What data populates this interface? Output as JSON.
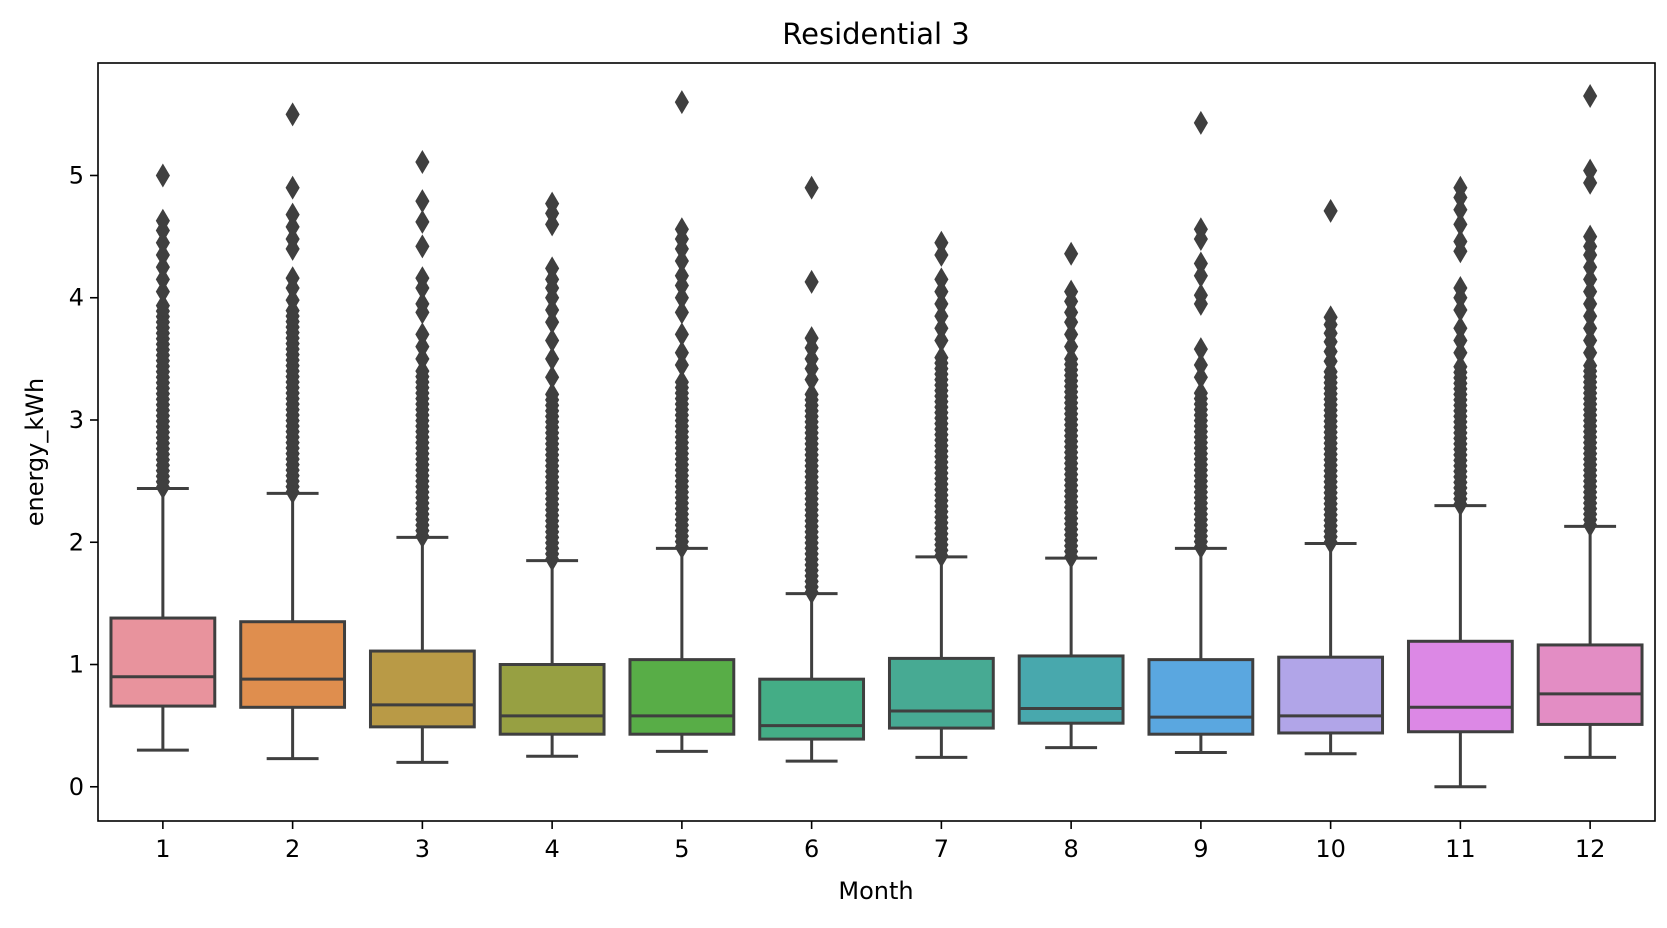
{
  "chart_data": {
    "type": "box",
    "title": "Residential 3",
    "xlabel": "Month",
    "ylabel": "energy_kWh",
    "categories": [
      "1",
      "2",
      "3",
      "4",
      "5",
      "6",
      "7",
      "8",
      "9",
      "10",
      "11",
      "12"
    ],
    "ylim": [
      -0.28,
      5.92
    ],
    "yticks": [
      0,
      1,
      2,
      3,
      4,
      5
    ],
    "ytick_labels": [
      "0",
      "1",
      "2",
      "3",
      "4",
      "5"
    ],
    "grid": false,
    "legend": "none",
    "box_edge_color": "#3f3f3f",
    "colors": [
      "#e8939d",
      "#df8e4e",
      "#b99a46",
      "#97a042",
      "#58ad47",
      "#44ad86",
      "#47aa93",
      "#48a8ad",
      "#5aa7e0",
      "#b1a5e8",
      "#dc88e5",
      "#e38dc4"
    ],
    "boxes": [
      {
        "month": "1",
        "whislo": 0.3,
        "q1": 0.66,
        "median": 0.9,
        "q3": 1.38,
        "whishi": 2.44,
        "outlier_min": 2.45,
        "outlier_dense_max": 3.95,
        "outliers": [
          4.05,
          4.15,
          4.25,
          4.35,
          4.45,
          4.55,
          4.63,
          5.0
        ]
      },
      {
        "month": "2",
        "whislo": 0.23,
        "q1": 0.65,
        "median": 0.88,
        "q3": 1.35,
        "whishi": 2.4,
        "outlier_min": 2.41,
        "outlier_dense_max": 3.9,
        "outliers": [
          3.98,
          4.08,
          4.16,
          4.4,
          4.48,
          4.58,
          4.68,
          4.9,
          5.5
        ]
      },
      {
        "month": "3",
        "whislo": 0.2,
        "q1": 0.49,
        "median": 0.67,
        "q3": 1.11,
        "whishi": 2.04,
        "outlier_min": 2.05,
        "outlier_dense_max": 3.4,
        "outliers": [
          3.5,
          3.6,
          3.7,
          3.88,
          3.95,
          4.08,
          4.16,
          4.42,
          4.62,
          4.79,
          5.11
        ]
      },
      {
        "month": "4",
        "whislo": 0.25,
        "q1": 0.43,
        "median": 0.58,
        "q3": 1.0,
        "whishi": 1.85,
        "outlier_min": 1.86,
        "outlier_dense_max": 3.25,
        "outliers": [
          3.35,
          3.5,
          3.65,
          3.8,
          3.9,
          4.0,
          4.08,
          4.15,
          4.24,
          4.6,
          4.69,
          4.77
        ]
      },
      {
        "month": "5",
        "whislo": 0.29,
        "q1": 0.43,
        "median": 0.58,
        "q3": 1.04,
        "whishi": 1.95,
        "outlier_min": 1.96,
        "outlier_dense_max": 3.35,
        "outliers": [
          3.45,
          3.55,
          3.7,
          3.88,
          4.0,
          4.1,
          4.18,
          4.3,
          4.4,
          4.48,
          4.56,
          5.6
        ]
      },
      {
        "month": "6",
        "whislo": 0.21,
        "q1": 0.39,
        "median": 0.5,
        "q3": 0.88,
        "whishi": 1.58,
        "outlier_min": 1.59,
        "outlier_dense_max": 3.25,
        "outliers": [
          3.33,
          3.42,
          3.5,
          3.59,
          3.67,
          4.13,
          4.9
        ]
      },
      {
        "month": "7",
        "whislo": 0.24,
        "q1": 0.48,
        "median": 0.62,
        "q3": 1.05,
        "whishi": 1.88,
        "outlier_min": 1.89,
        "outlier_dense_max": 3.55,
        "outliers": [
          3.65,
          3.75,
          3.85,
          3.95,
          4.05,
          4.15,
          4.35,
          4.45
        ]
      },
      {
        "month": "8",
        "whislo": 0.32,
        "q1": 0.52,
        "median": 0.64,
        "q3": 1.07,
        "whishi": 1.87,
        "outlier_min": 1.88,
        "outlier_dense_max": 3.5,
        "outliers": [
          3.6,
          3.7,
          3.8,
          3.88,
          3.97,
          4.05,
          4.36
        ]
      },
      {
        "month": "9",
        "whislo": 0.28,
        "q1": 0.43,
        "median": 0.57,
        "q3": 1.04,
        "whishi": 1.95,
        "outlier_min": 1.96,
        "outlier_dense_max": 3.25,
        "outliers": [
          3.35,
          3.45,
          3.58,
          3.95,
          4.02,
          4.18,
          4.28,
          4.48,
          4.56,
          5.43
        ]
      },
      {
        "month": "10",
        "whislo": 0.27,
        "q1": 0.44,
        "median": 0.58,
        "q3": 1.06,
        "whishi": 1.99,
        "outlier_min": 2.0,
        "outlier_dense_max": 3.4,
        "outliers": [
          3.48,
          3.56,
          3.64,
          3.71,
          3.78,
          3.84,
          4.71
        ]
      },
      {
        "month": "11",
        "whislo": 0.0,
        "q1": 0.45,
        "median": 0.65,
        "q3": 1.19,
        "whishi": 2.3,
        "outlier_min": 2.31,
        "outlier_dense_max": 3.45,
        "outliers": [
          3.55,
          3.65,
          3.75,
          3.9,
          4.0,
          4.08,
          4.38,
          4.46,
          4.6,
          4.72,
          4.82,
          4.9
        ]
      },
      {
        "month": "12",
        "whislo": 0.24,
        "q1": 0.51,
        "median": 0.76,
        "q3": 1.16,
        "whishi": 2.13,
        "outlier_min": 2.14,
        "outlier_dense_max": 3.45,
        "outliers": [
          3.55,
          3.65,
          3.75,
          3.85,
          3.95,
          4.05,
          4.15,
          4.25,
          4.35,
          4.42,
          4.5,
          4.94,
          5.04,
          5.65
        ]
      }
    ]
  }
}
